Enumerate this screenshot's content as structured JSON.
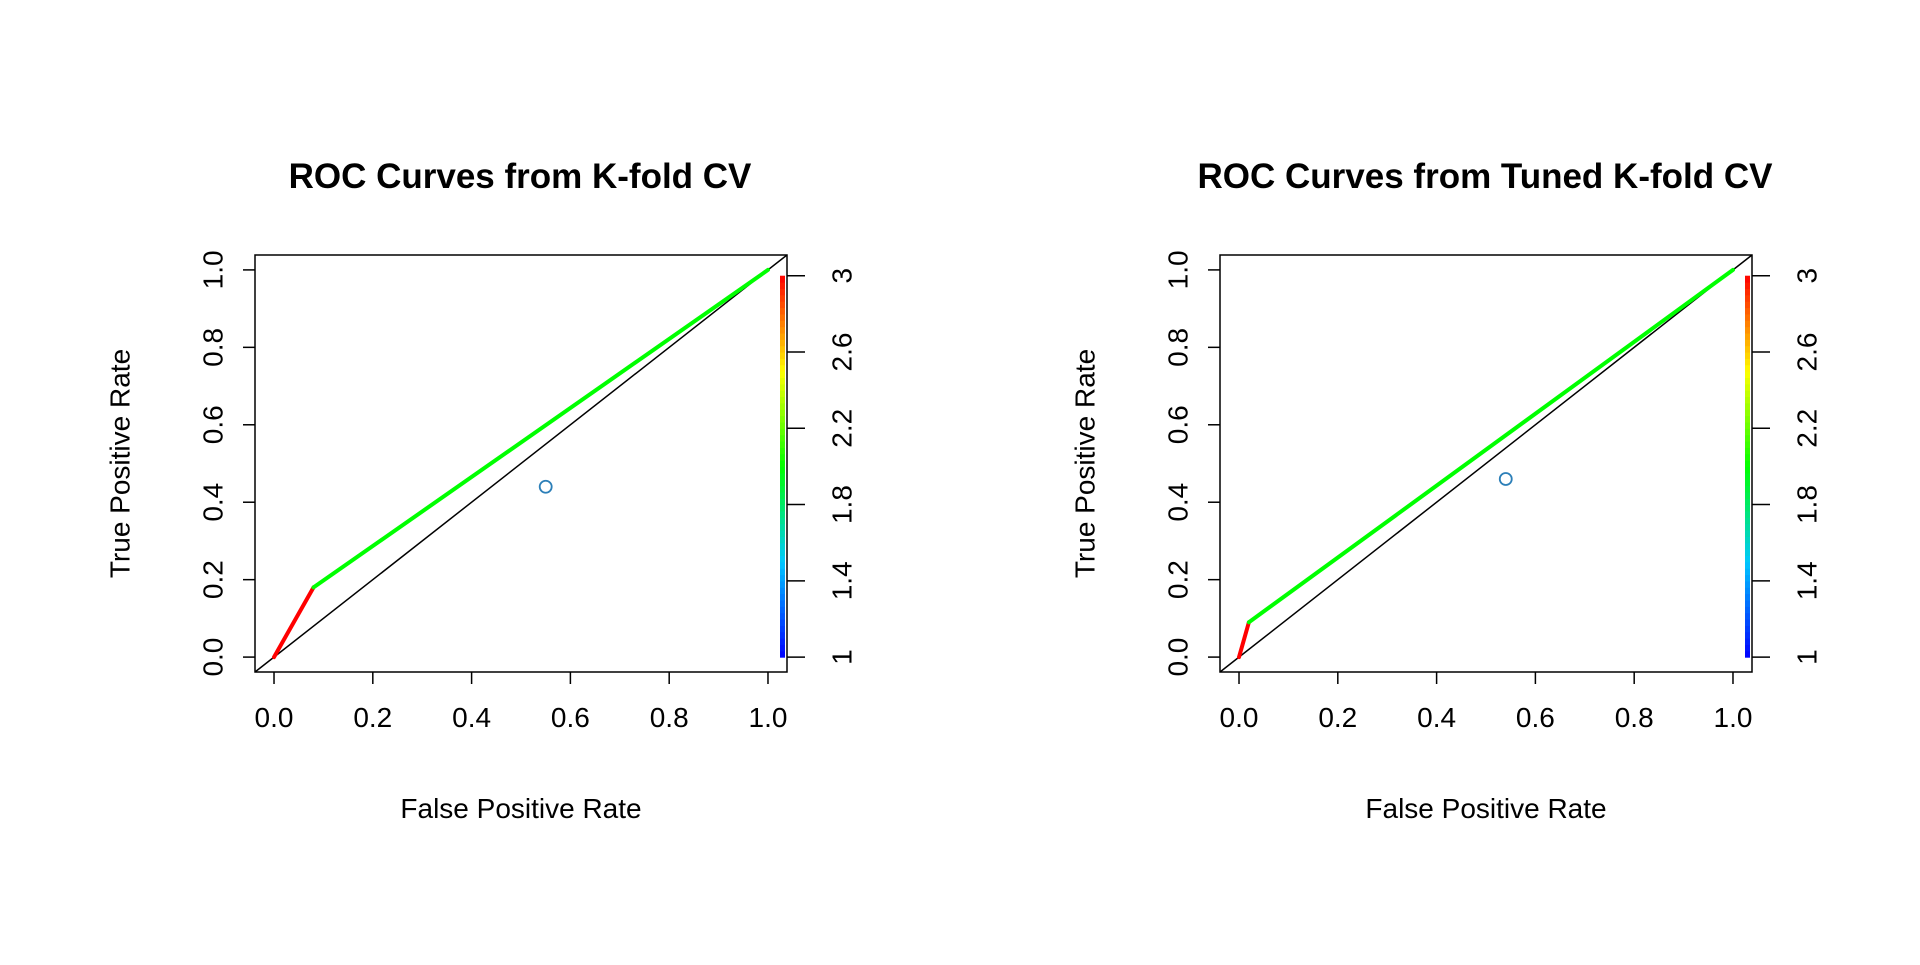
{
  "chart_data": [
    {
      "type": "line",
      "title": "ROC Curves from K-fold CV",
      "xlabel": "False Positive Rate",
      "ylabel": "True Positive Rate",
      "xlim": [
        0,
        1
      ],
      "ylim": [
        0,
        1
      ],
      "x_ticks": [
        "0.0",
        "0.2",
        "0.4",
        "0.6",
        "0.8",
        "1.0"
      ],
      "y_ticks": [
        "0.0",
        "0.2",
        "0.4",
        "0.6",
        "0.8",
        "1.0"
      ],
      "colorbar": {
        "ticks": [
          "1",
          "1.4",
          "1.8",
          "2.2",
          "2.6",
          "3"
        ],
        "range": [
          1,
          3
        ]
      },
      "series": [
        {
          "values": [
            {
              "x": 0.0,
              "y": 0.0,
              "t": 3.0
            },
            {
              "x": 0.08,
              "y": 0.18,
              "t": 2.0
            },
            {
              "x": 1.0,
              "y": 1.0,
              "t": 2.0
            }
          ]
        }
      ],
      "diagonal": true,
      "point": {
        "x": 0.55,
        "y": 0.44,
        "color": "#2c7fb8"
      },
      "colors": {
        "curve_high": "#ff0000",
        "curve_mid": "#00ff00"
      },
      "grid": false
    },
    {
      "type": "line",
      "title": "ROC Curves from Tuned K-fold CV",
      "xlabel": "False Positive Rate",
      "ylabel": "True Positive Rate",
      "xlim": [
        0,
        1
      ],
      "ylim": [
        0,
        1
      ],
      "x_ticks": [
        "0.0",
        "0.2",
        "0.4",
        "0.6",
        "0.8",
        "1.0"
      ],
      "y_ticks": [
        "0.0",
        "0.2",
        "0.4",
        "0.6",
        "0.8",
        "1.0"
      ],
      "colorbar": {
        "ticks": [
          "1",
          "1.4",
          "1.8",
          "2.2",
          "2.6",
          "3"
        ],
        "range": [
          1,
          3
        ]
      },
      "series": [
        {
          "values": [
            {
              "x": 0.0,
              "y": 0.0,
              "t": 3.0
            },
            {
              "x": 0.02,
              "y": 0.09,
              "t": 2.0
            },
            {
              "x": 1.0,
              "y": 1.0,
              "t": 2.0
            }
          ]
        }
      ],
      "diagonal": true,
      "point": {
        "x": 0.54,
        "y": 0.46,
        "color": "#2c7fb8"
      },
      "colors": {
        "curve_high": "#ff0000",
        "curve_mid": "#00ff00"
      },
      "grid": false
    }
  ]
}
